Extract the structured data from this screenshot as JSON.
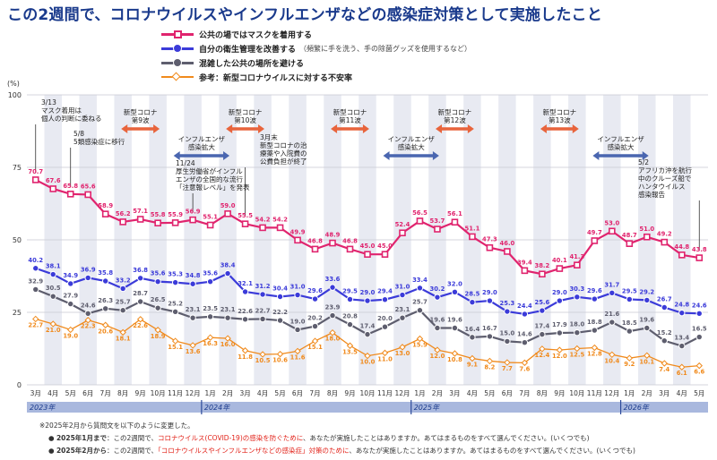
{
  "title": "この2週間で、コロナウイルスやインフルエンザなどの感染症対策として実施したこと",
  "legend": [
    {
      "label": "公共の場ではマスクを着用する",
      "note": "",
      "color": "#e0246e"
    },
    {
      "label": "自分の衛生管理を改善する",
      "note": "（頻繁に手を洗う、手の除菌グッズを使用するなど）",
      "color": "#3b3bd9"
    },
    {
      "label": "混雑した公共の場所を避ける",
      "note": "",
      "color": "#5e5e6e"
    },
    {
      "label": "参考：新型コロナウイルスに対する不安率",
      "note": "",
      "color": "#f08a1c"
    }
  ],
  "y_unit": "(%)",
  "footnotes": {
    "intro": "※2025年2月から質問文を以下のように変更した。",
    "line1_head": "2025年1月まで",
    "line1_pre": "：この2週間で、",
    "line1_hl": "コロナウイルス(COVID-19)の感染を防ぐために",
    "line1_post": "、あなたが実施したことはありますか。あてはまるものをすべて選んでください。(いくつでも)",
    "line2_head": "2025年2月から",
    "line2_pre": "：この2週間で、",
    "line2_hl": "「コロナウイルスやインフルエンザなどの感染症」対策のために",
    "line2_post": "、あなたが実施したことはありますか。あてはまるものをすべて選んでください。(いくつでも)"
  },
  "chart_data": {
    "type": "line",
    "ylim": [
      0,
      100
    ],
    "yticks": [
      0,
      25,
      50,
      75,
      100
    ],
    "categories": [
      "3月",
      "4月",
      "5月",
      "6月",
      "7月",
      "8月",
      "9月",
      "10月",
      "11月",
      "12月",
      "1月",
      "2月",
      "3月",
      "4月",
      "5月",
      "6月",
      "7月",
      "8月",
      "9月",
      "10月",
      "11月",
      "12月",
      "1月",
      "2月",
      "3月",
      "4月",
      "5月",
      "6月",
      "7月",
      "8月",
      "9月",
      "10月",
      "11月",
      "12月",
      "1月",
      "2月",
      "3月",
      "4月",
      "5月"
    ],
    "years": [
      {
        "label": "2023年",
        "start": 0,
        "end": 9
      },
      {
        "label": "2024年",
        "start": 10,
        "end": 21
      },
      {
        "label": "2025年",
        "start": 22,
        "end": 33
      },
      {
        "label": "2026年",
        "start": 34,
        "end": 38
      }
    ],
    "shaded": [
      1,
      3,
      5,
      7,
      9,
      11,
      13,
      15,
      17,
      19,
      21,
      23,
      25,
      27,
      29,
      31,
      33,
      35,
      37
    ],
    "series": [
      {
        "name": "公共の場ではマスクを着用する",
        "color": "#e0246e",
        "marker": "square",
        "values": [
          70.7,
          67.6,
          65.8,
          65.6,
          58.9,
          56.2,
          57.1,
          55.8,
          55.9,
          56.9,
          55.1,
          59.0,
          55.5,
          54.2,
          54.2,
          49.9,
          46.8,
          48.9,
          46.8,
          45.0,
          45.0,
          52.4,
          56.5,
          53.7,
          56.1,
          51.1,
          47.3,
          46.0,
          39.4,
          38.2,
          40.1,
          41.3,
          49.7,
          53.0,
          48.7,
          51.0,
          49.2,
          44.8,
          43.8
        ]
      },
      {
        "name": "自分の衛生管理を改善する",
        "color": "#3b3bd9",
        "marker": "circle",
        "values": [
          40.2,
          38.1,
          34.9,
          36.9,
          35.8,
          33.2,
          36.8,
          35.6,
          35.3,
          34.8,
          35.6,
          38.4,
          32.1,
          31.2,
          30.4,
          31.0,
          29.6,
          33.6,
          29.5,
          29.0,
          29.4,
          31.0,
          33.4,
          30.2,
          32.0,
          28.5,
          29.0,
          25.3,
          24.4,
          25.6,
          29.0,
          30.3,
          29.6,
          31.7,
          29.5,
          29.2,
          26.7,
          24.8,
          24.6
        ]
      },
      {
        "name": "混雑した公共の場所を避ける",
        "color": "#5e5e6e",
        "marker": "circle",
        "values": [
          32.9,
          30.5,
          27.9,
          24.6,
          26.3,
          25.7,
          28.7,
          26.5,
          25.2,
          23.1,
          23.5,
          23.1,
          22.6,
          22.7,
          22.2,
          19.0,
          20.2,
          23.9,
          20.8,
          17.4,
          20.0,
          23.1,
          25.7,
          19.6,
          19.6,
          16.4,
          16.7,
          15.0,
          14.6,
          17.4,
          17.9,
          18.0,
          18.8,
          21.6,
          18.5,
          19.6,
          15.2,
          13.4,
          16.5
        ]
      },
      {
        "name": "参考：新型コロナウイルスに対する不安率",
        "color": "#f08a1c",
        "marker": "diamond",
        "values": [
          22.7,
          21.0,
          19.0,
          22.3,
          20.6,
          18.1,
          22.6,
          18.9,
          15.1,
          13.6,
          16.3,
          16.0,
          11.8,
          10.5,
          10.6,
          11.6,
          15.1,
          18.0,
          13.5,
          10.0,
          11.0,
          13.0,
          15.9,
          12.0,
          10.8,
          9.1,
          8.2,
          7.7,
          7.6,
          12.4,
          12.0,
          12.5,
          12.8,
          10.4,
          9.2,
          10.1,
          7.4,
          6.1,
          6.6
        ]
      }
    ],
    "event_arrows": [
      {
        "label": "新型コロナ\n第9波",
        "from": 5,
        "to": 7,
        "color": "#e8643c"
      },
      {
        "label": "新型コロナ\n第10波",
        "from": 11,
        "to": 13,
        "color": "#e8643c"
      },
      {
        "label": "新型コロナ\n第11波",
        "from": 17,
        "to": 19,
        "color": "#e8643c"
      },
      {
        "label": "新型コロナ\n第12波",
        "from": 23,
        "to": 25,
        "color": "#e8643c"
      },
      {
        "label": "新型コロナ\n第13波",
        "from": 29,
        "to": 31,
        "color": "#e8643c"
      },
      {
        "label": "インフルエンザ\n感染拡大",
        "from": 8,
        "to": 11,
        "color": "#4a66b0"
      },
      {
        "label": "インフルエンザ\n感染拡大",
        "from": 20,
        "to": 23,
        "color": "#4a66b0"
      },
      {
        "label": "インフルエンザ\n感染拡大",
        "from": 32,
        "to": 35,
        "color": "#4a66b0"
      }
    ],
    "annotations": [
      {
        "text": "3/13\nマスク着用は\n個人の判断に委ねる",
        "at": 0
      },
      {
        "text": "5/8\n5類感染症に移行",
        "at": 2
      },
      {
        "text": "11/24\n厚生労働省がインフル\nエンザの全国的な流行\n「注意報レベル」を発表",
        "at": 9
      },
      {
        "text": "3月末\n新型コロナの治\n療薬や入院費の\n公費負担が終了",
        "at": 12
      },
      {
        "text": "5/2\nアフリカ沖を航行\n中のクルーズ船で\nハンタウイルス\n感染報告",
        "at": 38
      }
    ]
  }
}
